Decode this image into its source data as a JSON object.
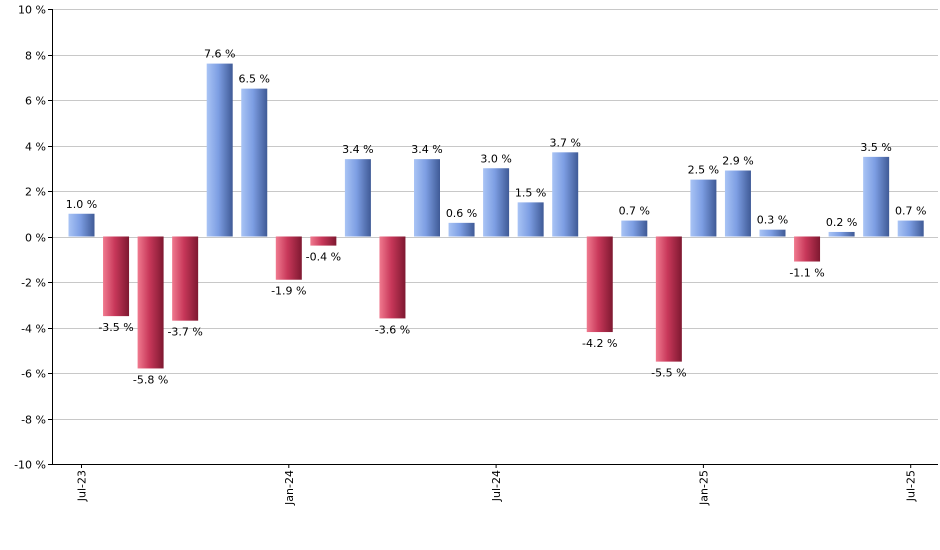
{
  "chart_data": {
    "type": "bar",
    "title": "",
    "xlabel": "",
    "ylabel": "",
    "ylim": [
      -10,
      10
    ],
    "ytick_step": 2,
    "ytick_suffix": " %",
    "grid": "horizontal",
    "colors": {
      "positive": "#7a9be0",
      "negative": "#c0344e"
    },
    "values": [
      1.0,
      -3.5,
      -5.8,
      -3.7,
      7.6,
      6.5,
      -1.9,
      -0.4,
      3.4,
      -3.6,
      3.4,
      0.6,
      3.0,
      1.5,
      3.7,
      -4.2,
      0.7,
      -5.5,
      2.5,
      2.9,
      0.3,
      -1.1,
      0.2,
      3.5,
      0.7
    ],
    "value_labels": [
      "1.0 %",
      "-3.5 %",
      "-5.8 %",
      "-3.7 %",
      "7.6 %",
      "6.5 %",
      "-1.9 %",
      "-0.4 %",
      "3.4 %",
      "-3.6 %",
      "3.4 %",
      "0.6 %",
      "3.0 %",
      "1.5 %",
      "3.7 %",
      "-4.2 %",
      "0.7 %",
      "-5.5 %",
      "2.5 %",
      "2.9 %",
      "0.3 %",
      "-1.1 %",
      "0.2 %",
      "3.5 %",
      "0.7 %"
    ],
    "x_tick_labels": [
      {
        "index": 0,
        "label": "Jul-23"
      },
      {
        "index": 6,
        "label": "Jan-24"
      },
      {
        "index": 12,
        "label": "Jul-24"
      },
      {
        "index": 18,
        "label": "Jan-25"
      },
      {
        "index": 24,
        "label": "Jul-25"
      }
    ]
  }
}
